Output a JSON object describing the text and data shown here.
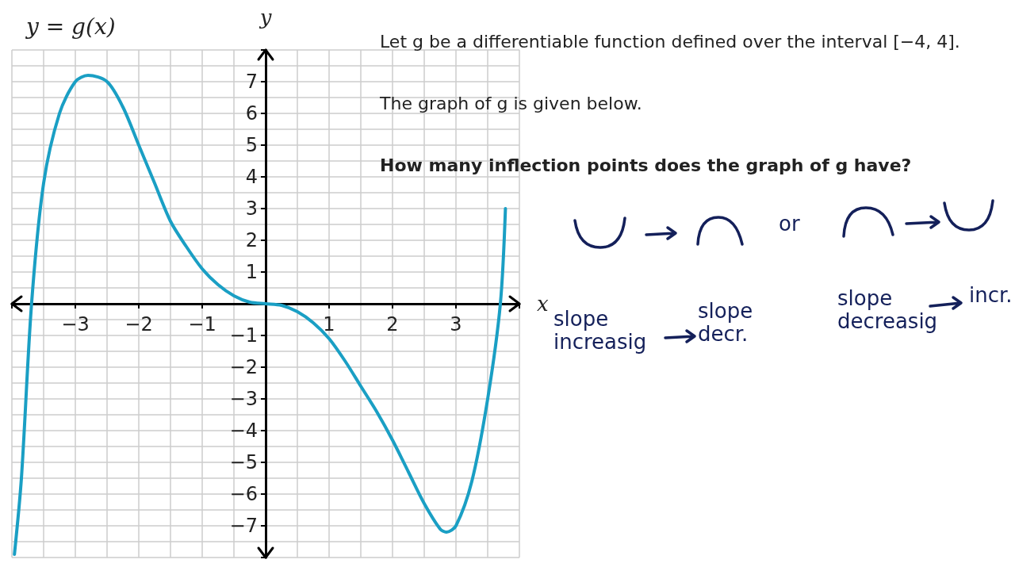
{
  "chart_data": {
    "type": "line",
    "title": "y = g(x)",
    "xlabel": "x",
    "ylabel": "y",
    "x": [
      -3.96,
      -3.85,
      -3.69,
      -3.5,
      -3.25,
      -3,
      -2.8,
      -2.5,
      -2.25,
      -2,
      -1.75,
      -1.5,
      -1.25,
      -1,
      -0.75,
      -0.5,
      -0.25,
      0,
      0.25,
      0.5,
      0.75,
      1,
      1.25,
      1.5,
      1.75,
      2,
      2.25,
      2.5,
      2.75,
      2.85,
      3,
      3.25,
      3.5,
      3.7,
      3.78
    ],
    "series": [
      {
        "color": "#1a9fc4",
        "values": [
          -7.9,
          -5.5,
          0,
          3.8,
          6.0,
          7.0,
          7.2,
          7.0,
          6.2,
          5.0,
          3.8,
          2.6,
          1.8,
          1.1,
          0.6,
          0.25,
          0.05,
          0,
          -0.05,
          -0.25,
          -0.6,
          -1.1,
          -1.8,
          -2.6,
          -3.4,
          -4.3,
          -5.3,
          -6.3,
          -7.1,
          -7.2,
          -7.0,
          -5.6,
          -3.0,
          0,
          3.0
        ]
      }
    ],
    "xlim": [
      -4,
      4
    ],
    "xticks": [
      {
        "value": -4,
        "label": null
      },
      -3,
      -2,
      -1,
      {
        "value": 0,
        "label": null
      },
      1,
      2,
      3,
      {
        "value": 4,
        "label": null
      }
    ],
    "ylim": [
      -8,
      8
    ],
    "yticks": [
      {
        "value": -8,
        "label": null
      },
      -7,
      -6,
      -5,
      -4,
      -3,
      -2,
      -1,
      {
        "value": 0,
        "label": null
      },
      1,
      2,
      3,
      4,
      5,
      6,
      7,
      {
        "value": 8,
        "label": null
      }
    ],
    "grid": true,
    "marker": "none",
    "line_style": "solid",
    "annotations": [
      "Let g be a differentiable function defined over the interval [−4, 4].",
      "The graph of g is given below.",
      "How many inflection points does the graph of g have?",
      "or",
      "slope increasig",
      "slope decr.",
      "slope decreasig",
      "incr."
    ]
  }
}
